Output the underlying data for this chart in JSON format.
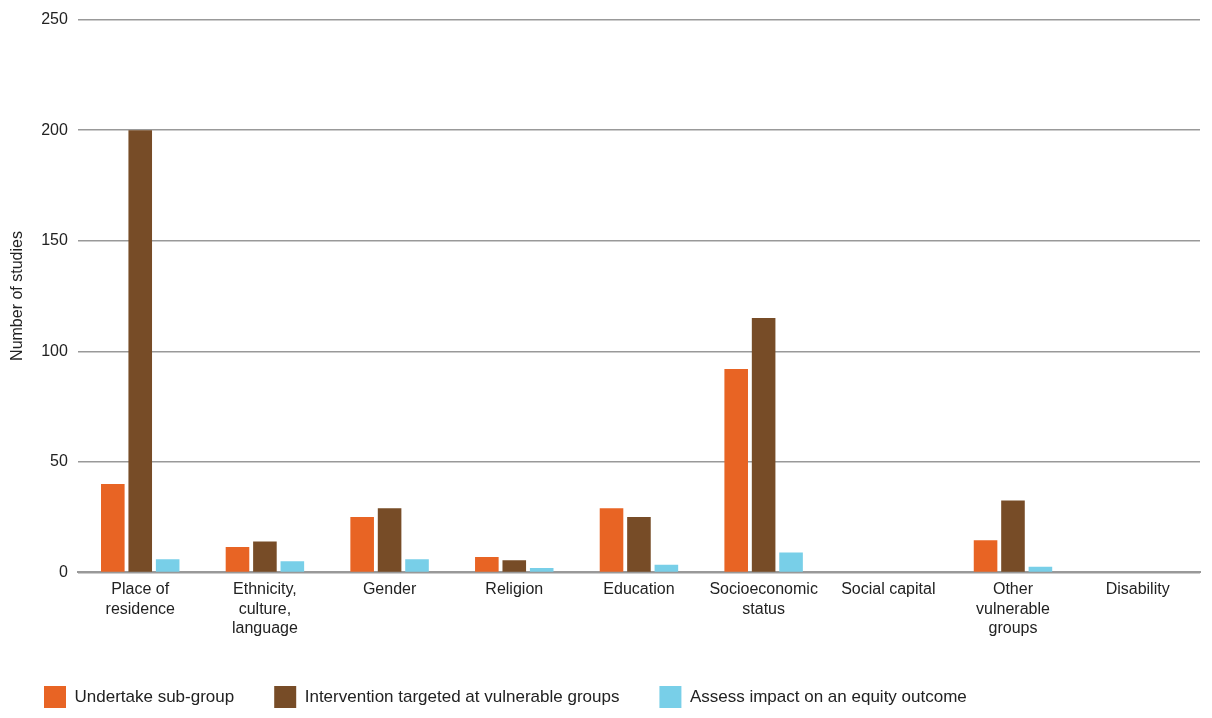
{
  "chart_data": {
    "type": "bar",
    "ylabel": "Number of studies",
    "categories": [
      "Place of residence",
      "Ethnicity, culture, language",
      "Gender",
      "Religion",
      "Education",
      "Socioeconomic status",
      "Social capital",
      "Other vulnerable groups",
      "Disability"
    ],
    "series": [
      {
        "name": "Undertake sub-group",
        "color": "#e86424",
        "values": [
          40,
          11.5,
          25,
          7,
          29,
          92,
          0,
          14.5,
          0
        ]
      },
      {
        "name": "Intervention targeted at vulnerable groups",
        "color": "#774c27",
        "values": [
          200,
          14,
          29,
          5.5,
          25,
          115,
          0,
          32.5,
          0
        ]
      },
      {
        "name": "Assess impact on an equity outcome",
        "color": "#78cfe8",
        "values": [
          6,
          5,
          6,
          2,
          3.5,
          9,
          0,
          2.5,
          0
        ]
      }
    ],
    "ylim": [
      0,
      250
    ],
    "yticks": [
      0,
      50,
      100,
      150,
      200,
      250
    ],
    "grid": "y",
    "legend": "bottom left"
  }
}
